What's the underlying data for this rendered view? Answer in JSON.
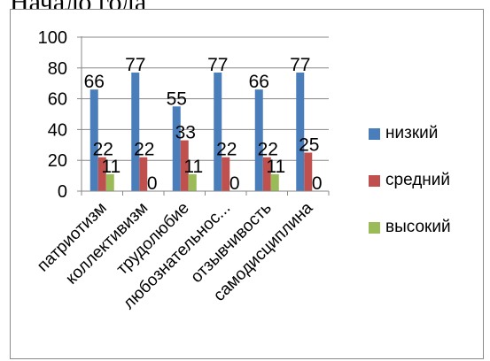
{
  "document": {
    "heading_fragment": "Начало года"
  },
  "chart_data": {
    "type": "bar",
    "categories": [
      "патриотизм",
      "коллективизм",
      "трудолюбие",
      "любознательнос...",
      "отзывчивость",
      "самодисциплина"
    ],
    "series": [
      {
        "name": "низкий",
        "color": "#4a7ebb",
        "values": [
          66,
          77,
          55,
          77,
          66,
          77
        ]
      },
      {
        "name": "средний",
        "color": "#c0504d",
        "values": [
          22,
          22,
          33,
          22,
          22,
          25
        ]
      },
      {
        "name": "высокий",
        "color": "#9bbb59",
        "values": [
          11,
          0,
          11,
          0,
          11,
          0
        ]
      }
    ],
    "ylim": [
      0,
      100
    ],
    "yticks": [
      0,
      20,
      40,
      60,
      80,
      100
    ],
    "gridlines": true,
    "data_labels": true,
    "legend_position": "right"
  }
}
